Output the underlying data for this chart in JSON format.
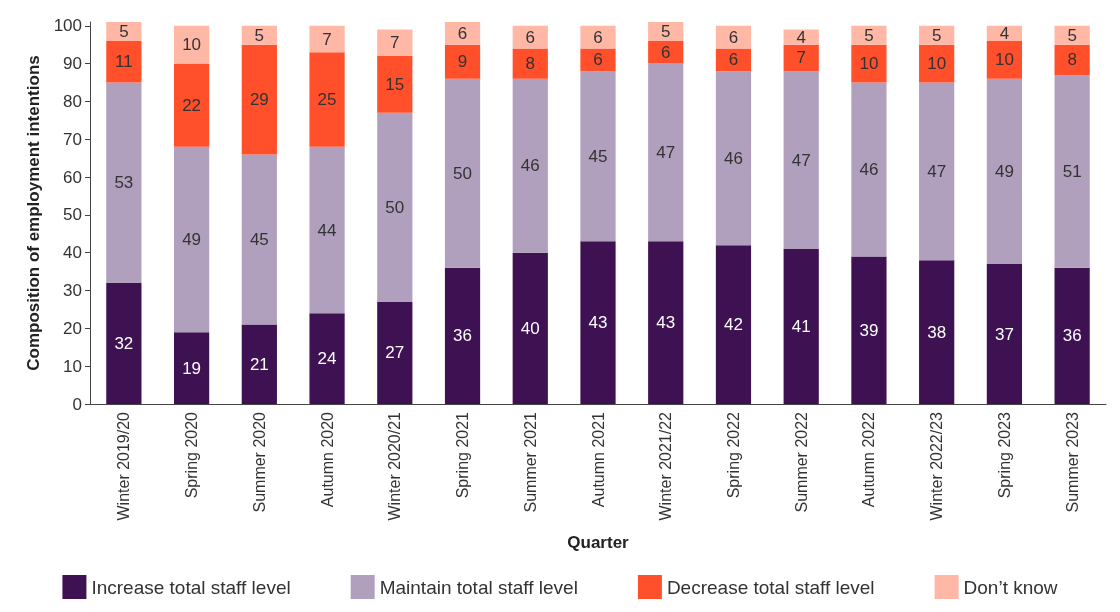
{
  "chart_data": {
    "type": "bar",
    "stacked": true,
    "xlabel": "Quarter",
    "ylabel": "Composition of employment intentions",
    "categories": [
      "Winter 2019/20",
      "Spring 2020",
      "Summer 2020",
      "Autumn 2020",
      "Winter 2020/21",
      "Spring 2021",
      "Summer 2021",
      "Autumn 2021",
      "Winter 2021/22",
      "Spring 2022",
      "Summer 2022",
      "Autumn 2022",
      "Winter 2022/23",
      "Spring 2023",
      "Summer 2023"
    ],
    "series": [
      {
        "name": "Increase total staff level",
        "color": "#3d1152",
        "values": [
          32,
          19,
          21,
          24,
          27,
          36,
          40,
          43,
          43,
          42,
          41,
          39,
          38,
          37,
          36
        ]
      },
      {
        "name": "Maintain total staff level",
        "color": "#b0a0bd",
        "values": [
          53,
          49,
          45,
          44,
          50,
          50,
          46,
          45,
          47,
          46,
          47,
          46,
          47,
          49,
          51
        ]
      },
      {
        "name": "Decrease total staff level",
        "color": "#ff4f2b",
        "values": [
          11,
          22,
          29,
          25,
          15,
          9,
          8,
          6,
          6,
          6,
          7,
          10,
          10,
          10,
          8
        ]
      },
      {
        "name": "Don’t know",
        "color": "#ffb7a6",
        "values": [
          5,
          10,
          5,
          7,
          7,
          6,
          6,
          6,
          5,
          6,
          4,
          5,
          5,
          4,
          5
        ]
      }
    ],
    "ylim": [
      0,
      101
    ],
    "yticks": [
      0,
      10,
      20,
      30,
      40,
      50,
      60,
      70,
      80,
      90,
      100
    ],
    "grid": false,
    "legend": "bottom",
    "data_labels": true
  }
}
